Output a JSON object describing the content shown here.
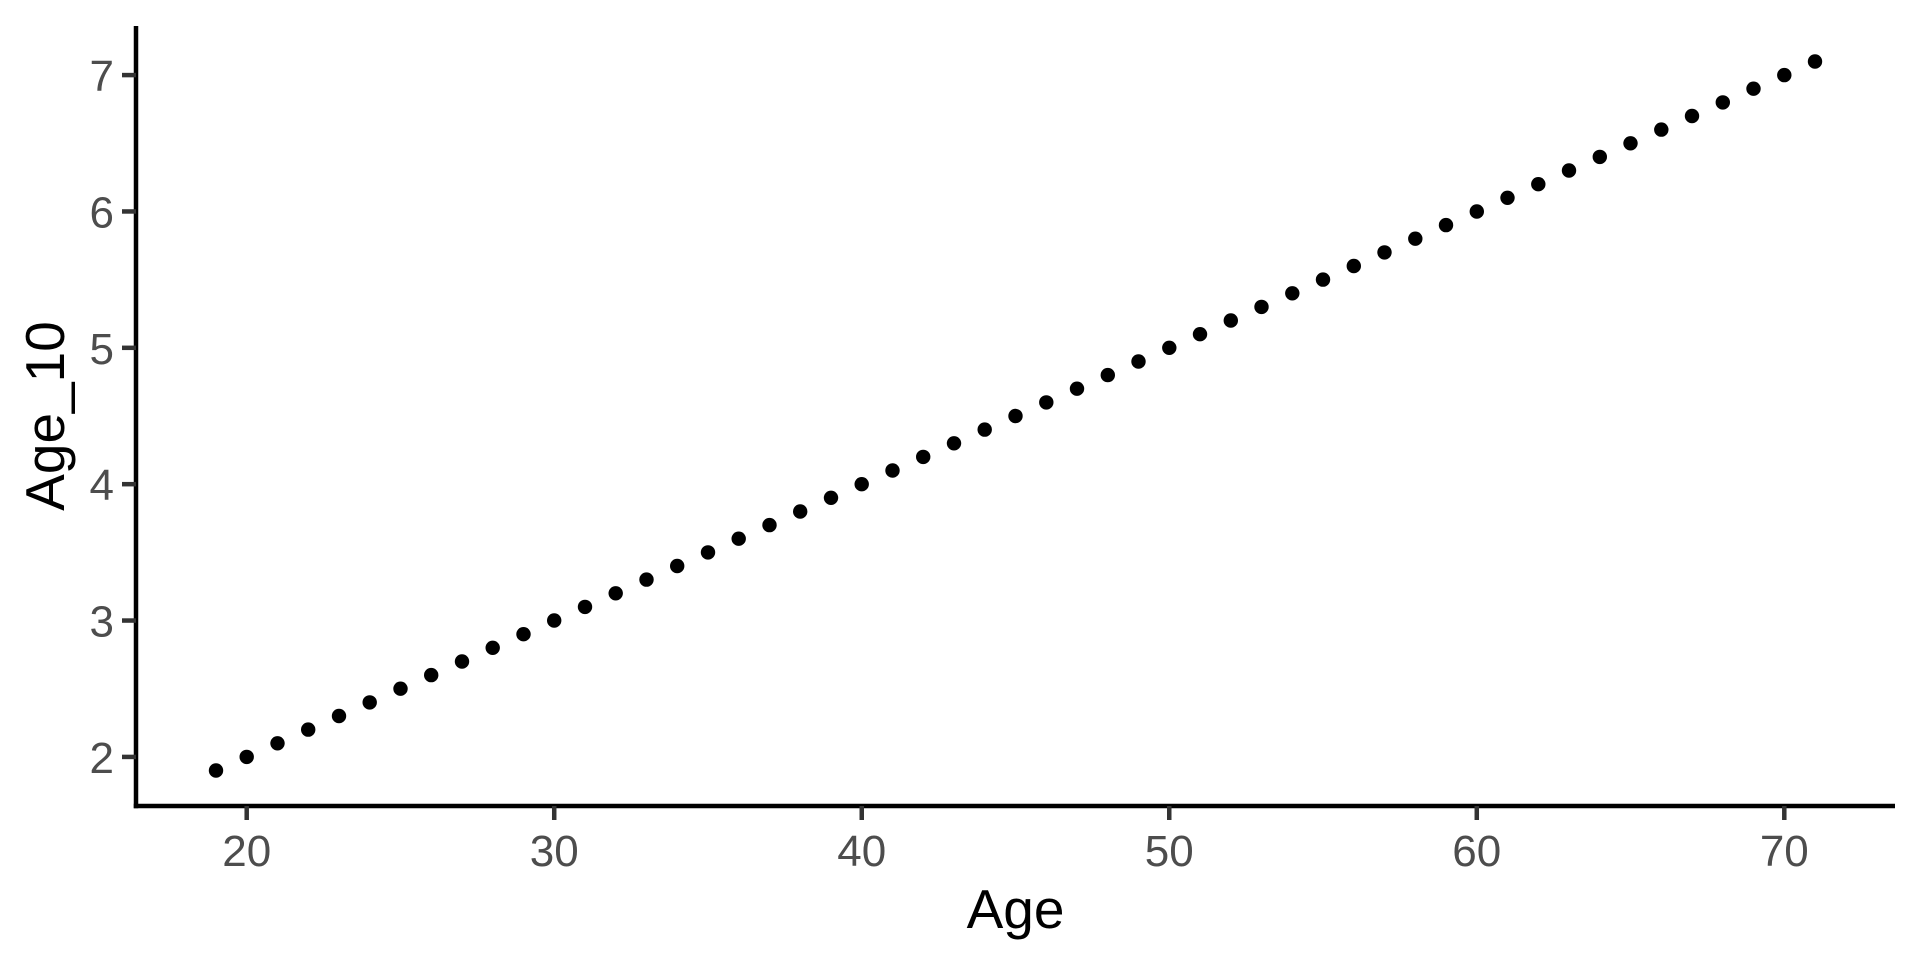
{
  "chart_data": {
    "type": "scatter",
    "title": "",
    "xlabel": "Age",
    "ylabel": "Age_10",
    "x": [
      19,
      20,
      21,
      22,
      23,
      24,
      25,
      26,
      27,
      28,
      29,
      30,
      31,
      32,
      33,
      34,
      35,
      36,
      37,
      38,
      39,
      40,
      41,
      42,
      43,
      44,
      45,
      46,
      47,
      48,
      49,
      50,
      51,
      52,
      53,
      54,
      55,
      56,
      57,
      58,
      59,
      60,
      61,
      62,
      63,
      64,
      65,
      66,
      67,
      68,
      69,
      70,
      71
    ],
    "y": [
      1.9,
      2.0,
      2.1,
      2.2,
      2.3,
      2.4,
      2.5,
      2.6,
      2.7,
      2.8,
      2.9,
      3.0,
      3.1,
      3.2,
      3.3,
      3.4,
      3.5,
      3.6,
      3.7,
      3.8,
      3.9,
      4.0,
      4.1,
      4.2,
      4.3,
      4.4,
      4.5,
      4.6,
      4.7,
      4.8,
      4.9,
      5.0,
      5.1,
      5.2,
      5.3,
      5.4,
      5.5,
      5.6,
      5.7,
      5.8,
      5.9,
      6.0,
      6.1,
      6.2,
      6.3,
      6.4,
      6.5,
      6.6,
      6.7,
      6.8,
      6.9,
      7.0,
      7.1
    ],
    "x_ticks": [
      20,
      30,
      40,
      50,
      60,
      70
    ],
    "y_ticks": [
      2,
      3,
      4,
      5,
      6,
      7
    ],
    "xlim": [
      16.4,
      73.6
    ],
    "ylim": [
      1.64,
      7.36
    ],
    "grid": "off",
    "legend": "none",
    "colors": {
      "point": "#000000",
      "axis_line": "#000000",
      "tick_mark": "#333333",
      "tick_label": "#4D4D4D",
      "axis_title": "#000000",
      "background": "#FFFFFF"
    }
  }
}
